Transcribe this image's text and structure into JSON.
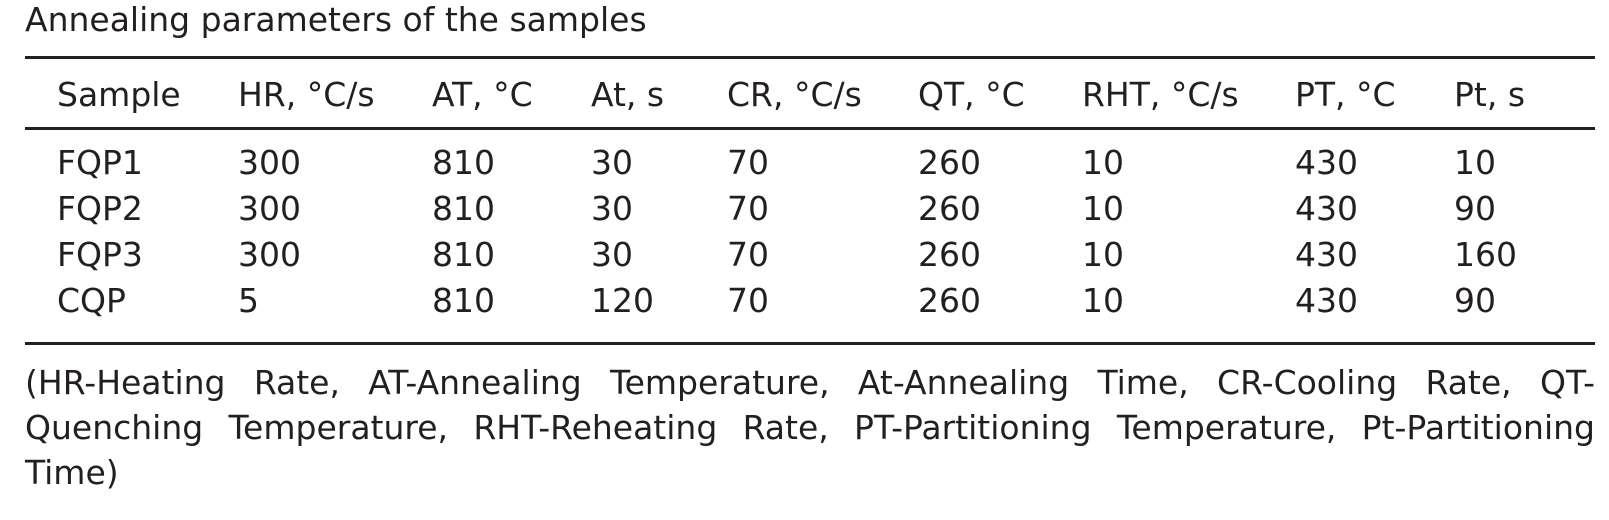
{
  "table": {
    "caption": "Annealing parameters of the samples",
    "headers": [
      "Sample",
      "HR, °C/s",
      "AT, °C",
      "At, s",
      "CR, °C/s",
      "QT, °C",
      "RHT, °C/s",
      "PT, °C",
      "Pt, s"
    ],
    "rows": [
      [
        "FQP1",
        "300",
        "810",
        "30",
        "70",
        "260",
        "10",
        "430",
        "10"
      ],
      [
        "FQP2",
        "300",
        "810",
        "30",
        "70",
        "260",
        "10",
        "430",
        "90"
      ],
      [
        "FQP3",
        "300",
        "810",
        "30",
        "70",
        "260",
        "10",
        "430",
        "160"
      ],
      [
        "CQP",
        "5",
        "810",
        "120",
        "70",
        "260",
        "10",
        "430",
        "90"
      ]
    ],
    "footnote": "(HR-Heating Rate, AT-Annealing Temperature, At-Annealing Time, CR-Cooling Rate, QT-Quenching Temperature, RHT-Reheating Rate, PT-Partitioning Temperature, Pt-Partitioning Time)"
  }
}
